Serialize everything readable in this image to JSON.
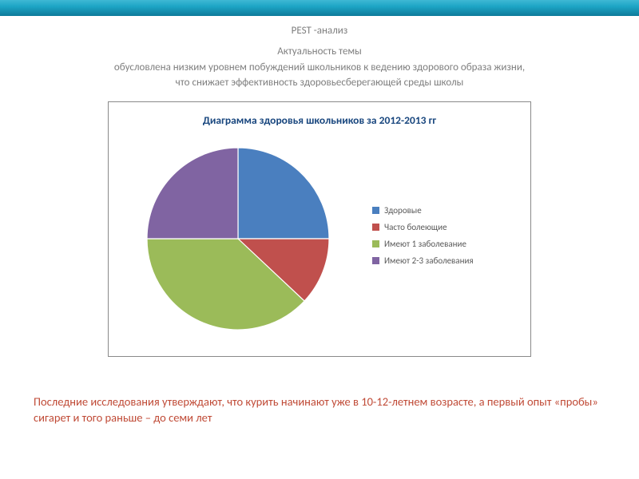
{
  "banner": {
    "gradient_top": "#3fb8d4",
    "gradient_mid": "#1da5c5",
    "gradient_bottom": "#0e7a9a"
  },
  "heading": {
    "line1": "PEST -анализ",
    "line2": "Актуальность темы",
    "line3": "обусловлена низким уровнем побуждений школьников к ведению здорового образа жизни,",
    "line4": "что снижает эффективность здоровьесберегающей среды школы",
    "color": "#7f7f7f",
    "font_size": 13
  },
  "chart": {
    "type": "pie",
    "title": "Диаграмма здоровья школьников за 2012-2013 гг",
    "title_color": "#18467e",
    "title_fontsize": 13.5,
    "title_fontweight": "bold",
    "frame_border": "#8a8a8a",
    "background_color": "#ffffff",
    "slices": [
      {
        "label": "Здоровые",
        "value": 25,
        "color": "#4a7fbf"
      },
      {
        "label": "Часто болеющие",
        "value": 12,
        "color": "#c0504d"
      },
      {
        "label": "Имеют 1 заболевание",
        "value": 38,
        "color": "#9bbb59"
      },
      {
        "label": "Имеют 2-3 заболевания",
        "value": 25,
        "color": "#8064a2"
      }
    ],
    "slice_border": "#ffffff",
    "slice_border_width": 1,
    "start_angle_deg": -90,
    "legend": {
      "font_size": 11,
      "text_color": "#595959",
      "swatch_size": 9
    }
  },
  "footnote": {
    "text": "Последние исследования утверждают, что курить начинают уже в 10-12-летнем возрасте, а первый опыт «пробы» сигарет и того раньше – до семи лет",
    "color": "#c04b37",
    "font_size": 14.5
  }
}
